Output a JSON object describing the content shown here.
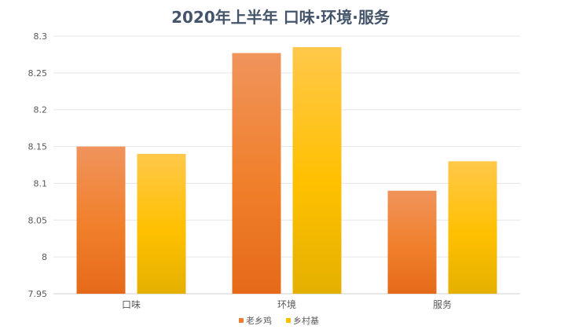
{
  "chart_data": {
    "type": "bar",
    "title": "2020年上半年 口味·环境·服务",
    "categories": [
      "口味",
      "环境",
      "服务"
    ],
    "series": [
      {
        "name": "老乡鸡",
        "values": [
          8.15,
          8.277,
          8.09
        ],
        "color": "#ed7d31"
      },
      {
        "name": "乡村基",
        "values": [
          8.14,
          8.285,
          8.13
        ],
        "color": "#ffc000"
      }
    ],
    "ylim": [
      7.95,
      8.3
    ],
    "yticks": [
      "7.95",
      "8",
      "8.05",
      "8.1",
      "8.15",
      "8.2",
      "8.25",
      "8.3"
    ],
    "grid": true,
    "legend": "bottom",
    "xlabel": "",
    "ylabel": ""
  }
}
